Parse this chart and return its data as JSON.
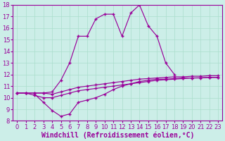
{
  "background_color": "#cceee8",
  "line_color": "#990099",
  "grid_color": "#aaddcc",
  "xlabel": "Windchill (Refroidissement éolien,°C)",
  "xlabel_fontsize": 7.0,
  "tick_fontsize": 6.0,
  "xlim": [
    -0.5,
    23.5
  ],
  "ylim": [
    8,
    18
  ],
  "yticks": [
    8,
    9,
    10,
    11,
    12,
    13,
    14,
    15,
    16,
    17,
    18
  ],
  "xticks": [
    0,
    1,
    2,
    3,
    4,
    5,
    6,
    7,
    8,
    9,
    10,
    11,
    12,
    13,
    14,
    15,
    16,
    17,
    18,
    19,
    20,
    21,
    22,
    23
  ],
  "line1_x": [
    0,
    1,
    2,
    3,
    4,
    5,
    6,
    7,
    8,
    9,
    10,
    11,
    12,
    13,
    14,
    15,
    16,
    17,
    18,
    19,
    20,
    21,
    22,
    23
  ],
  "line1_y": [
    10.4,
    10.4,
    10.4,
    10.4,
    10.3,
    10.5,
    10.7,
    10.9,
    11.0,
    11.1,
    11.2,
    11.3,
    11.4,
    11.5,
    11.6,
    11.65,
    11.7,
    11.75,
    11.8,
    11.8,
    11.85,
    11.85,
    11.9,
    11.9
  ],
  "line2_x": [
    0,
    1,
    2,
    3,
    4,
    5,
    6,
    7,
    8,
    9,
    10,
    11,
    12,
    13,
    14,
    15,
    16,
    17,
    18,
    19,
    20,
    21,
    22,
    23
  ],
  "line2_y": [
    10.4,
    10.4,
    10.2,
    10.0,
    10.0,
    10.2,
    10.4,
    10.6,
    10.7,
    10.8,
    10.9,
    11.0,
    11.1,
    11.2,
    11.3,
    11.4,
    11.5,
    11.55,
    11.6,
    11.65,
    11.7,
    11.7,
    11.75,
    11.75
  ],
  "line3_x": [
    2,
    3,
    4,
    5,
    6,
    7,
    8,
    9,
    10,
    11,
    12,
    13,
    14,
    15,
    16,
    17,
    18,
    19,
    20,
    21,
    22,
    23
  ],
  "line3_y": [
    10.3,
    9.6,
    8.9,
    8.4,
    8.6,
    9.6,
    9.8,
    10.0,
    10.3,
    10.7,
    11.0,
    11.2,
    11.4,
    11.5,
    11.6,
    11.6,
    11.65,
    11.7,
    11.7,
    11.72,
    11.75,
    11.75
  ],
  "line4_x": [
    0,
    1,
    2,
    3,
    4,
    5,
    6,
    7,
    8,
    9,
    10,
    11,
    12,
    13,
    14,
    15,
    16,
    17,
    18
  ],
  "line4_y": [
    10.4,
    10.4,
    10.4,
    10.4,
    10.5,
    11.5,
    13.0,
    15.3,
    15.3,
    16.8,
    17.2,
    17.2,
    15.3,
    17.3,
    18.0,
    16.2,
    15.3,
    13.0,
    12.0
  ]
}
